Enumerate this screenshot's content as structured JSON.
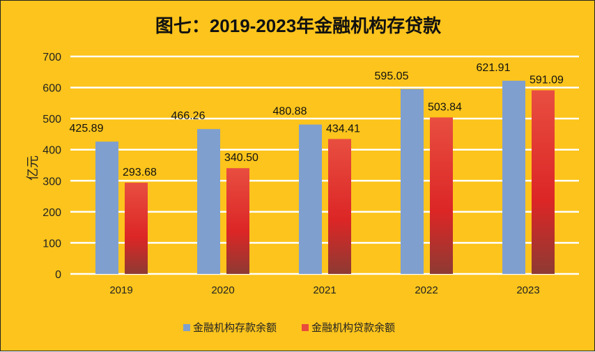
{
  "chart_data": {
    "type": "bar",
    "title": "图七：2019-2023年金融机构存贷款",
    "xlabel": "",
    "ylabel": "亿元",
    "ylim": [
      0,
      700
    ],
    "yticks": [
      "0",
      "100",
      "200",
      "300",
      "400",
      "500",
      "600",
      "700"
    ],
    "categories": [
      "2019",
      "2020",
      "2021",
      "2022",
      "2023"
    ],
    "series": [
      {
        "name": "金融机构存款余额",
        "color": "#7F9FCF",
        "values": [
          425.89,
          466.26,
          480.88,
          595.05,
          621.91
        ],
        "labels": [
          "425.89",
          "466.26",
          "480.88",
          "595.05",
          "621.91"
        ]
      },
      {
        "name": "金融机构贷款余额",
        "color": "#E84A3C",
        "values": [
          293.68,
          340.5,
          434.41,
          503.84,
          591.09
        ],
        "labels": [
          "293.68",
          "340.50",
          "434.41",
          "503.84",
          "591.09"
        ]
      }
    ],
    "grid": true,
    "legend": "bottom",
    "background": "#FCC41C"
  }
}
